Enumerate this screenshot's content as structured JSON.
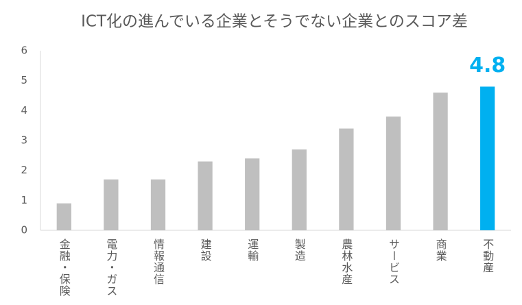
{
  "chart_data": {
    "type": "bar",
    "title": "ICT化の進んでいる企業とそうでない企業とのスコア差",
    "categories": [
      "金融・保険",
      "電力・ガス",
      "情報通信",
      "建設",
      "運輸",
      "製造",
      "農林水産",
      "サービス",
      "商業",
      "不動産"
    ],
    "values": [
      0.9,
      1.7,
      1.7,
      2.3,
      2.4,
      2.7,
      3.4,
      3.8,
      4.6,
      4.8
    ],
    "value_labels": [
      null,
      null,
      null,
      null,
      null,
      null,
      null,
      null,
      null,
      "4.8"
    ],
    "colors": [
      "#bfbfbf",
      "#bfbfbf",
      "#bfbfbf",
      "#bfbfbf",
      "#bfbfbf",
      "#bfbfbf",
      "#bfbfbf",
      "#bfbfbf",
      "#bfbfbf",
      "#00b0f0"
    ],
    "ylim": [
      0,
      6
    ],
    "yticks": [
      0,
      1,
      2,
      3,
      4,
      5,
      6
    ],
    "grid": false
  }
}
